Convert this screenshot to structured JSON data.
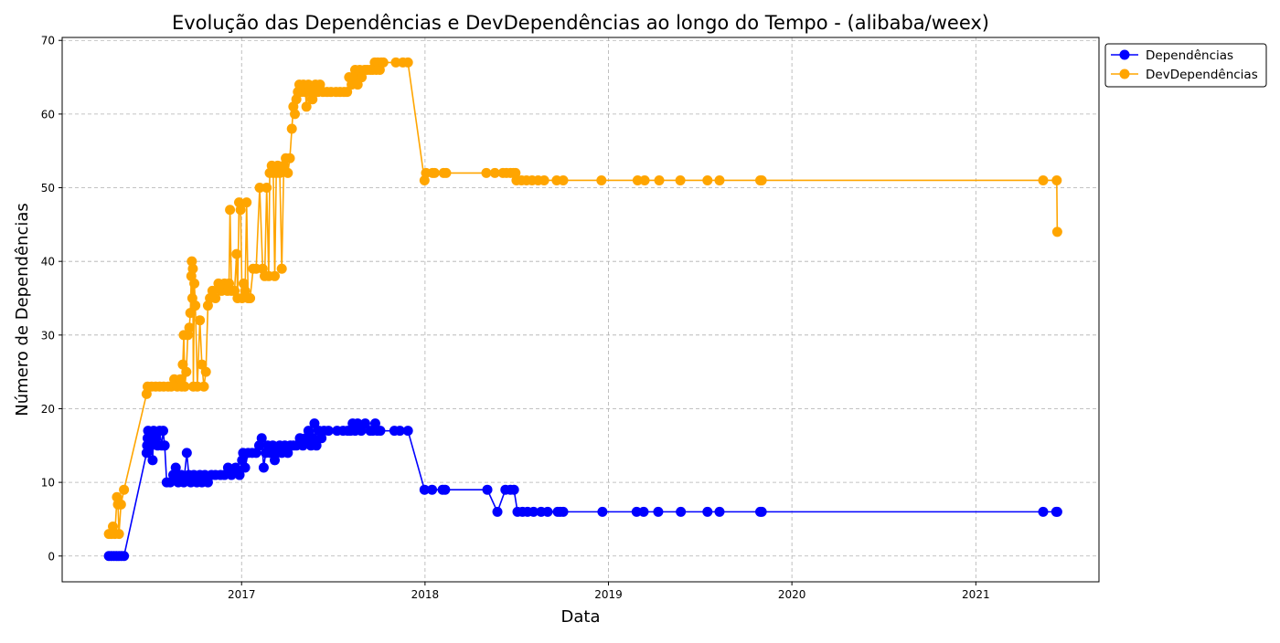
{
  "chart_data": {
    "type": "line",
    "title": "Evolução das Dependências e DevDependências ao longo do Tempo - (alibaba/weex)",
    "xlabel": "Data",
    "ylabel": "Número de Dependências",
    "x_is_date": true,
    "xlim": [
      "2016-01-10",
      "2021-09-03"
    ],
    "ylim": [
      -3.5,
      70.4
    ],
    "x_ticks": [
      "2017-01-01",
      "2018-01-01",
      "2019-01-01",
      "2020-01-01",
      "2021-01-01"
    ],
    "x_tick_labels": [
      "2017",
      "2018",
      "2019",
      "2020",
      "2021"
    ],
    "y_ticks": [
      0,
      10,
      20,
      30,
      40,
      50,
      60,
      70
    ],
    "grid": true,
    "legend": {
      "position": "outside-upper-right"
    },
    "series": [
      {
        "name": "Dependências",
        "color": "#0000ff",
        "marker": "circle",
        "points": [
          [
            "2016-04-12",
            0
          ],
          [
            "2016-04-17",
            0
          ],
          [
            "2016-04-22",
            0
          ],
          [
            "2016-04-27",
            0
          ],
          [
            "2016-05-02",
            0
          ],
          [
            "2016-05-07",
            0
          ],
          [
            "2016-05-12",
            0
          ],
          [
            "2016-06-26",
            14
          ],
          [
            "2016-06-27",
            15
          ],
          [
            "2016-06-28",
            16
          ],
          [
            "2016-06-29",
            17
          ],
          [
            "2016-07-05",
            15
          ],
          [
            "2016-07-08",
            13
          ],
          [
            "2016-07-10",
            17
          ],
          [
            "2016-07-14",
            16
          ],
          [
            "2016-07-18",
            15
          ],
          [
            "2016-07-22",
            17
          ],
          [
            "2016-07-26",
            15
          ],
          [
            "2016-07-29",
            17
          ],
          [
            "2016-08-01",
            15
          ],
          [
            "2016-08-05",
            10
          ],
          [
            "2016-08-12",
            10
          ],
          [
            "2016-08-18",
            11
          ],
          [
            "2016-08-23",
            12
          ],
          [
            "2016-08-28",
            10
          ],
          [
            "2016-09-03",
            11
          ],
          [
            "2016-09-08",
            10
          ],
          [
            "2016-09-14",
            14
          ],
          [
            "2016-09-18",
            11
          ],
          [
            "2016-09-22",
            10
          ],
          [
            "2016-09-28",
            11
          ],
          [
            "2016-10-04",
            10
          ],
          [
            "2016-10-10",
            11
          ],
          [
            "2016-10-14",
            10
          ],
          [
            "2016-10-20",
            11
          ],
          [
            "2016-10-26",
            10
          ],
          [
            "2016-11-02",
            11
          ],
          [
            "2016-11-10",
            11
          ],
          [
            "2016-11-20",
            11
          ],
          [
            "2016-11-28",
            11
          ],
          [
            "2016-12-05",
            12
          ],
          [
            "2016-12-12",
            11
          ],
          [
            "2016-12-20",
            12
          ],
          [
            "2016-12-28",
            11
          ],
          [
            "2017-01-02",
            13
          ],
          [
            "2017-01-04",
            14
          ],
          [
            "2017-01-08",
            12
          ],
          [
            "2017-01-14",
            14
          ],
          [
            "2017-01-22",
            14
          ],
          [
            "2017-01-30",
            14
          ],
          [
            "2017-02-05",
            15
          ],
          [
            "2017-02-10",
            16
          ],
          [
            "2017-02-14",
            12
          ],
          [
            "2017-02-18",
            14
          ],
          [
            "2017-02-22",
            15
          ],
          [
            "2017-02-27",
            14
          ],
          [
            "2017-03-04",
            15
          ],
          [
            "2017-03-08",
            13
          ],
          [
            "2017-03-12",
            14
          ],
          [
            "2017-03-18",
            15
          ],
          [
            "2017-03-22",
            14
          ],
          [
            "2017-03-28",
            15
          ],
          [
            "2017-04-03",
            14
          ],
          [
            "2017-04-08",
            15
          ],
          [
            "2017-04-14",
            15
          ],
          [
            "2017-04-20",
            15
          ],
          [
            "2017-04-27",
            16
          ],
          [
            "2017-05-03",
            15
          ],
          [
            "2017-05-09",
            16
          ],
          [
            "2017-05-14",
            17
          ],
          [
            "2017-05-19",
            15
          ],
          [
            "2017-05-23",
            16
          ],
          [
            "2017-05-26",
            18
          ],
          [
            "2017-05-30",
            15
          ],
          [
            "2017-06-04",
            17
          ],
          [
            "2017-06-09",
            16
          ],
          [
            "2017-06-14",
            17
          ],
          [
            "2017-06-23",
            17
          ],
          [
            "2017-07-10",
            17
          ],
          [
            "2017-07-22",
            17
          ],
          [
            "2017-07-31",
            17
          ],
          [
            "2017-08-06",
            17
          ],
          [
            "2017-08-10",
            18
          ],
          [
            "2017-08-15",
            17
          ],
          [
            "2017-08-20",
            18
          ],
          [
            "2017-08-27",
            17
          ],
          [
            "2017-09-04",
            18
          ],
          [
            "2017-09-14",
            17
          ],
          [
            "2017-09-19",
            17
          ],
          [
            "2017-09-24",
            18
          ],
          [
            "2017-09-28",
            17
          ],
          [
            "2017-10-04",
            17
          ],
          [
            "2017-11-01",
            17
          ],
          [
            "2017-11-12",
            17
          ],
          [
            "2017-11-28",
            17
          ],
          [
            "2017-12-31",
            9
          ],
          [
            "2018-01-15",
            9
          ],
          [
            "2018-02-05",
            9
          ],
          [
            "2018-02-10",
            9
          ],
          [
            "2018-05-05",
            9
          ],
          [
            "2018-05-25",
            6
          ],
          [
            "2018-06-10",
            9
          ],
          [
            "2018-06-20",
            9
          ],
          [
            "2018-06-27",
            9
          ],
          [
            "2018-07-04",
            6
          ],
          [
            "2018-07-14",
            6
          ],
          [
            "2018-07-24",
            6
          ],
          [
            "2018-08-05",
            6
          ],
          [
            "2018-08-20",
            6
          ],
          [
            "2018-09-02",
            6
          ],
          [
            "2018-09-22",
            6
          ],
          [
            "2018-09-27",
            6
          ],
          [
            "2018-10-03",
            6
          ],
          [
            "2018-12-20",
            6
          ],
          [
            "2019-02-26",
            6
          ],
          [
            "2019-03-12",
            6
          ],
          [
            "2019-04-10",
            6
          ],
          [
            "2019-05-25",
            6
          ],
          [
            "2019-07-17",
            6
          ],
          [
            "2019-08-10",
            6
          ],
          [
            "2019-10-30",
            6
          ],
          [
            "2019-11-02",
            6
          ],
          [
            "2021-05-15",
            6
          ],
          [
            "2021-06-10",
            6
          ],
          [
            "2021-06-12",
            6
          ]
        ]
      },
      {
        "name": "DevDependências",
        "color": "#ffa500",
        "marker": "circle",
        "points": [
          [
            "2016-04-12",
            3
          ],
          [
            "2016-04-17",
            3
          ],
          [
            "2016-04-20",
            4
          ],
          [
            "2016-04-24",
            3
          ],
          [
            "2016-04-28",
            8
          ],
          [
            "2016-04-30",
            7
          ],
          [
            "2016-05-02",
            3
          ],
          [
            "2016-05-06",
            7
          ],
          [
            "2016-05-12",
            9
          ],
          [
            "2016-06-26",
            22
          ],
          [
            "2016-06-28",
            23
          ],
          [
            "2016-07-06",
            23
          ],
          [
            "2016-07-14",
            23
          ],
          [
            "2016-07-22",
            23
          ],
          [
            "2016-07-30",
            23
          ],
          [
            "2016-08-08",
            23
          ],
          [
            "2016-08-14",
            23
          ],
          [
            "2016-08-20",
            24
          ],
          [
            "2016-08-26",
            23
          ],
          [
            "2016-09-01",
            24
          ],
          [
            "2016-09-04",
            23
          ],
          [
            "2016-09-06",
            26
          ],
          [
            "2016-09-08",
            30
          ],
          [
            "2016-09-10",
            23
          ],
          [
            "2016-09-13",
            25
          ],
          [
            "2016-09-16",
            30
          ],
          [
            "2016-09-19",
            31
          ],
          [
            "2016-09-21",
            33
          ],
          [
            "2016-09-23",
            38
          ],
          [
            "2016-09-24",
            40
          ],
          [
            "2016-09-25",
            35
          ],
          [
            "2016-09-26",
            39
          ],
          [
            "2016-09-27",
            23
          ],
          [
            "2016-09-29",
            37
          ],
          [
            "2016-10-01",
            34
          ],
          [
            "2016-10-05",
            23
          ],
          [
            "2016-10-10",
            32
          ],
          [
            "2016-10-14",
            26
          ],
          [
            "2016-10-18",
            23
          ],
          [
            "2016-10-22",
            25
          ],
          [
            "2016-10-26",
            34
          ],
          [
            "2016-10-30",
            35
          ],
          [
            "2016-11-04",
            36
          ],
          [
            "2016-11-10",
            35
          ],
          [
            "2016-11-16",
            37
          ],
          [
            "2016-11-22",
            36
          ],
          [
            "2016-11-28",
            37
          ],
          [
            "2016-12-04",
            36
          ],
          [
            "2016-12-07",
            37
          ],
          [
            "2016-12-09",
            47
          ],
          [
            "2016-12-12",
            36
          ],
          [
            "2016-12-18",
            36
          ],
          [
            "2016-12-22",
            41
          ],
          [
            "2016-12-24",
            35
          ],
          [
            "2016-12-27",
            48
          ],
          [
            "2016-12-30",
            47
          ],
          [
            "2017-01-02",
            35
          ],
          [
            "2017-01-05",
            37
          ],
          [
            "2017-01-08",
            36
          ],
          [
            "2017-01-11",
            48
          ],
          [
            "2017-01-14",
            35
          ],
          [
            "2017-01-18",
            35
          ],
          [
            "2017-01-24",
            39
          ],
          [
            "2017-01-30",
            39
          ],
          [
            "2017-02-06",
            50
          ],
          [
            "2017-02-12",
            39
          ],
          [
            "2017-02-16",
            38
          ],
          [
            "2017-02-20",
            50
          ],
          [
            "2017-02-24",
            38
          ],
          [
            "2017-02-26",
            52
          ],
          [
            "2017-03-02",
            53
          ],
          [
            "2017-03-05",
            52
          ],
          [
            "2017-03-08",
            38
          ],
          [
            "2017-03-11",
            52
          ],
          [
            "2017-03-14",
            53
          ],
          [
            "2017-03-18",
            52
          ],
          [
            "2017-03-22",
            39
          ],
          [
            "2017-03-26",
            53
          ],
          [
            "2017-03-30",
            54
          ],
          [
            "2017-04-03",
            52
          ],
          [
            "2017-04-07",
            54
          ],
          [
            "2017-04-11",
            58
          ],
          [
            "2017-04-14",
            61
          ],
          [
            "2017-04-17",
            60
          ],
          [
            "2017-04-20",
            62
          ],
          [
            "2017-04-23",
            63
          ],
          [
            "2017-04-26",
            64
          ],
          [
            "2017-04-30",
            63
          ],
          [
            "2017-05-04",
            64
          ],
          [
            "2017-05-08",
            63
          ],
          [
            "2017-05-10",
            61
          ],
          [
            "2017-05-14",
            64
          ],
          [
            "2017-05-18",
            63
          ],
          [
            "2017-05-22",
            62
          ],
          [
            "2017-05-25",
            63
          ],
          [
            "2017-05-28",
            64
          ],
          [
            "2017-06-02",
            63
          ],
          [
            "2017-06-06",
            64
          ],
          [
            "2017-06-12",
            63
          ],
          [
            "2017-06-20",
            63
          ],
          [
            "2017-06-28",
            63
          ],
          [
            "2017-07-08",
            63
          ],
          [
            "2017-07-16",
            63
          ],
          [
            "2017-07-24",
            63
          ],
          [
            "2017-07-30",
            63
          ],
          [
            "2017-08-03",
            65
          ],
          [
            "2017-08-08",
            64
          ],
          [
            "2017-08-12",
            65
          ],
          [
            "2017-08-15",
            66
          ],
          [
            "2017-08-20",
            64
          ],
          [
            "2017-08-24",
            66
          ],
          [
            "2017-08-28",
            65
          ],
          [
            "2017-09-03",
            66
          ],
          [
            "2017-09-08",
            66
          ],
          [
            "2017-09-14",
            66
          ],
          [
            "2017-09-19",
            66
          ],
          [
            "2017-09-23",
            67
          ],
          [
            "2017-09-26",
            66
          ],
          [
            "2017-09-29",
            67
          ],
          [
            "2017-10-03",
            66
          ],
          [
            "2017-10-06",
            67
          ],
          [
            "2017-10-10",
            67
          ],
          [
            "2017-11-04",
            67
          ],
          [
            "2017-11-18",
            67
          ],
          [
            "2017-11-28",
            67
          ],
          [
            "2017-12-31",
            51
          ],
          [
            "2018-01-03",
            52
          ],
          [
            "2018-01-16",
            52
          ],
          [
            "2018-01-20",
            52
          ],
          [
            "2018-02-07",
            52
          ],
          [
            "2018-02-12",
            52
          ],
          [
            "2018-05-03",
            52
          ],
          [
            "2018-05-20",
            52
          ],
          [
            "2018-06-05",
            52
          ],
          [
            "2018-06-12",
            52
          ],
          [
            "2018-06-20",
            52
          ],
          [
            "2018-06-26",
            52
          ],
          [
            "2018-06-30",
            52
          ],
          [
            "2018-07-02",
            51
          ],
          [
            "2018-07-12",
            51
          ],
          [
            "2018-07-22",
            51
          ],
          [
            "2018-08-02",
            51
          ],
          [
            "2018-08-14",
            51
          ],
          [
            "2018-08-26",
            51
          ],
          [
            "2018-09-20",
            51
          ],
          [
            "2018-10-03",
            51
          ],
          [
            "2018-12-18",
            51
          ],
          [
            "2019-02-28",
            51
          ],
          [
            "2019-03-14",
            51
          ],
          [
            "2019-04-12",
            51
          ],
          [
            "2019-05-24",
            51
          ],
          [
            "2019-07-17",
            51
          ],
          [
            "2019-08-10",
            51
          ],
          [
            "2019-10-30",
            51
          ],
          [
            "2019-11-02",
            51
          ],
          [
            "2021-05-15",
            51
          ],
          [
            "2021-06-11",
            51
          ],
          [
            "2021-06-12",
            44
          ]
        ]
      }
    ]
  }
}
